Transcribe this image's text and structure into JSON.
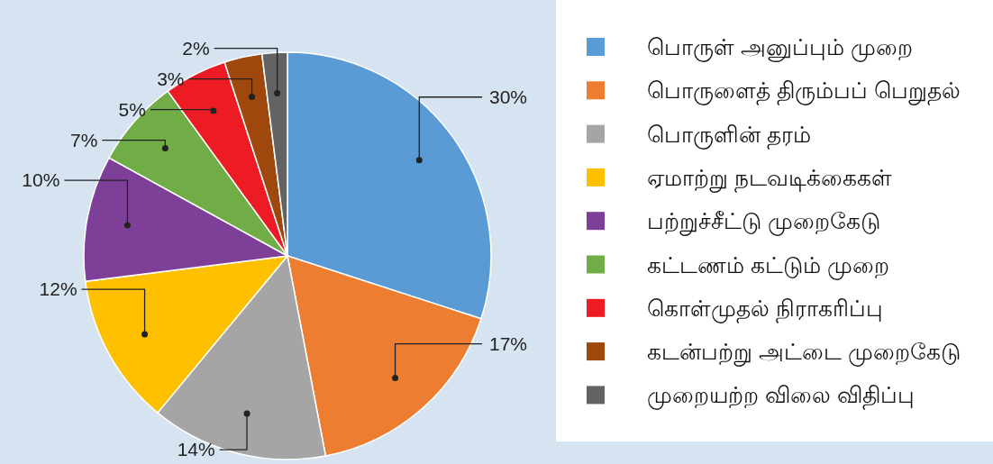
{
  "chart_data": {
    "type": "pie",
    "categories": [
      "பொருள் அனுப்பும் முறை",
      "பொருளைத் திரும்பப் பெறுதல்",
      "பொருளின் தரம்",
      "ஏமாற்று நடவடிக்கைகள்",
      "பற்றுச்சீட்டு முறைகேடு",
      "கட்டணம் கட்டும் முறை",
      "கொள்முதல் நிராகரிப்பு",
      "கடன்பற்று அட்டை முறைகேடு",
      "முறையற்ற விலை விதிப்பு"
    ],
    "values": [
      30,
      17,
      14,
      12,
      10,
      7,
      5,
      3,
      2
    ],
    "colors": [
      "#5b9bd5",
      "#ed7d31",
      "#a5a5a5",
      "#ffc000",
      "#7e3f98",
      "#70ad47",
      "#ed1c24",
      "#9e480e",
      "#636363"
    ],
    "value_labels": [
      "30%",
      "17%",
      "14%",
      "12%",
      "10%",
      "7%",
      "5%",
      "3%",
      "2%"
    ],
    "legend": "right"
  }
}
